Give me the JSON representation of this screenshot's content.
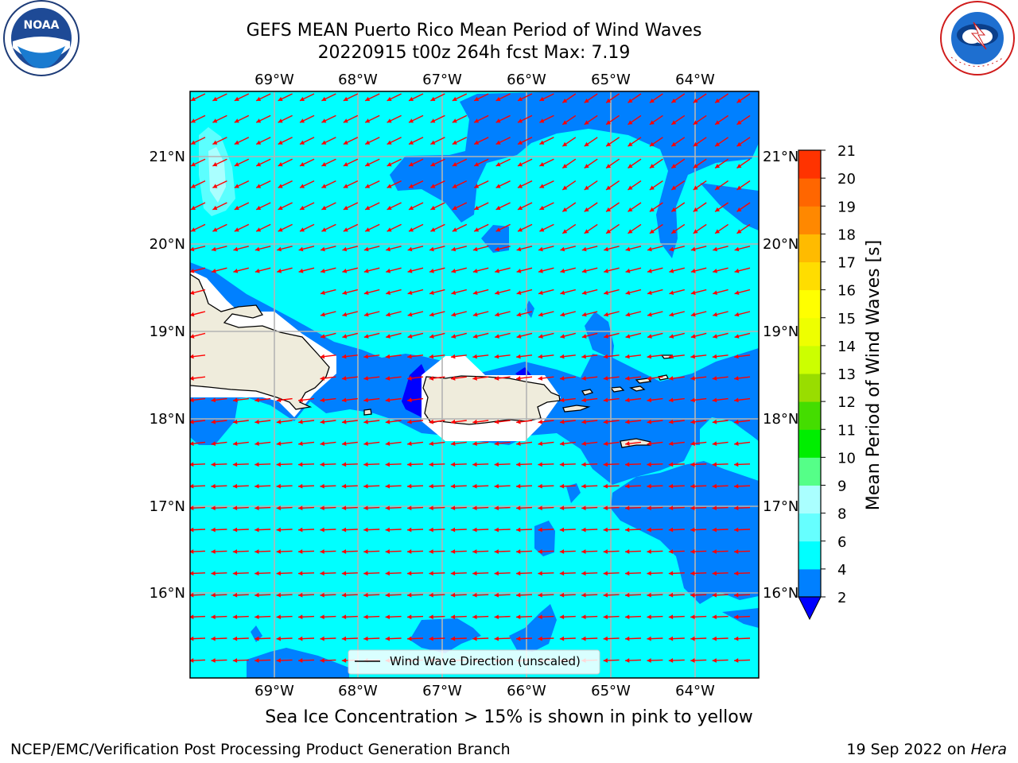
{
  "title": {
    "line1": "GEFS MEAN Puerto Rico Mean Period of Wind Waves",
    "line2": "20220915 t00z 264h fcst   Max: 7.19"
  },
  "map": {
    "lon_labels": [
      "69°W",
      "68°W",
      "67°W",
      "66°W",
      "65°W",
      "64°W"
    ],
    "lat_labels": [
      "21°N",
      "20°N",
      "19°N",
      "18°N",
      "17°N",
      "16°N"
    ],
    "legend_label": "Wind Wave Direction (unscaled)",
    "arrow_color": "#ff0000",
    "land_color": "#efecdc",
    "ocean_colors": {
      "band_2_4": "#0080ff",
      "band_4_6": "#00ffff",
      "band_6_8": "#5cffff",
      "band_8_9": "#aaffff",
      "below_2": "#0000ff"
    }
  },
  "colorbar": {
    "label": "Mean Period of Wind Waves [s]",
    "ticks": [
      "2",
      "4",
      "6",
      "8",
      "9",
      "10",
      "11",
      "12",
      "13",
      "14",
      "15",
      "16",
      "17",
      "18",
      "19",
      "20",
      "21"
    ],
    "colors": [
      "#0080ff",
      "#00ffff",
      "#66ffff",
      "#aaffff",
      "#55ff88",
      "#00ee00",
      "#44dd00",
      "#99dd00",
      "#ccff00",
      "#eeff00",
      "#ffff00",
      "#ffdd00",
      "#ffbb00",
      "#ff8800",
      "#ff6600",
      "#ff3300",
      "#ff0000"
    ],
    "extend_color": "#0000ff"
  },
  "note": "Sea Ice Concentration > 15% is shown in pink to yellow",
  "footer": {
    "left": "NCEP/EMC/Verification Post Processing Product Generation Branch",
    "right_prefix": "19 Sep 2022 on ",
    "right_host": "Hera"
  },
  "logos": {
    "noaa_text": "NOAA",
    "nws_text": "NATIONAL WEATHER SERVICE"
  }
}
